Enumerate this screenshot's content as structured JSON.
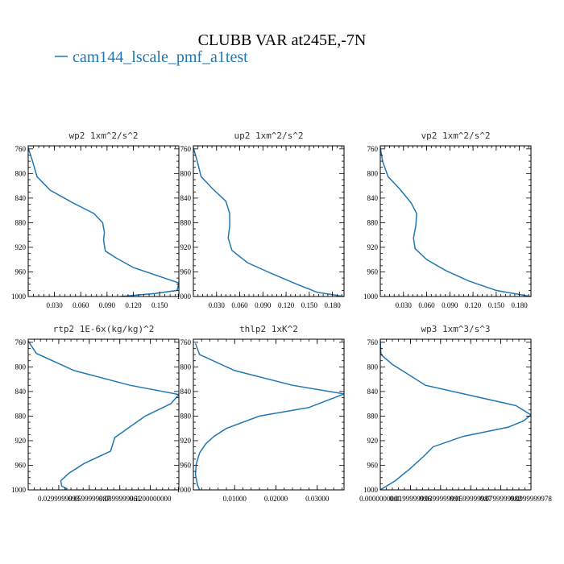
{
  "figure": {
    "title": "CLUBB VAR at245E,-7N",
    "legend": [
      {
        "label": "cam144_lscale_pmf_a1test",
        "color": "#1f77b4"
      }
    ]
  },
  "colors": {
    "series": "#1f77b4",
    "axes": "#000000"
  },
  "chart_data": [
    {
      "type": "line",
      "title": "wp2  1xm^2/s^2",
      "xlim": [
        0,
        0.172
      ],
      "ylim": [
        1000,
        755
      ],
      "xticks": [
        0.03,
        0.06,
        0.09,
        0.12,
        0.15
      ],
      "xtick_labels": [
        "0.030",
        "0.060",
        "0.090",
        "0.120",
        "0.150"
      ],
      "yticks": [
        760,
        800,
        840,
        880,
        920,
        960,
        1000
      ],
      "ytick_labels": [
        "760",
        "800",
        "840",
        "880",
        "920",
        "960",
        "1000"
      ],
      "series": [
        {
          "x": [
            0.0,
            0.005,
            0.01,
            0.025,
            0.05,
            0.075,
            0.085,
            0.087,
            0.086,
            0.088,
            0.1,
            0.12,
            0.172,
            0.17,
            0.145,
            0.105
          ],
          "y": [
            758,
            780,
            805,
            827,
            847,
            865,
            880,
            896,
            908,
            926,
            937,
            953,
            978,
            990,
            995,
            1000
          ]
        }
      ]
    },
    {
      "type": "line",
      "title": "up2  1xm^2/s^2",
      "xlim": [
        0,
        0.195
      ],
      "ylim": [
        1000,
        755
      ],
      "xticks": [
        0.03,
        0.06,
        0.09,
        0.12,
        0.15,
        0.18
      ],
      "xtick_labels": [
        "0.030",
        "0.060",
        "0.090",
        "0.120",
        "0.150",
        "0.180"
      ],
      "yticks": [
        760,
        800,
        840,
        880,
        920,
        960,
        1000
      ],
      "ytick_labels": [
        "760",
        "800",
        "840",
        "880",
        "920",
        "960",
        "1000"
      ],
      "series": [
        {
          "x": [
            0.0,
            0.005,
            0.01,
            0.025,
            0.042,
            0.047,
            0.047,
            0.045,
            0.05,
            0.07,
            0.1,
            0.13,
            0.16,
            0.195
          ],
          "y": [
            758,
            780,
            805,
            825,
            845,
            865,
            885,
            905,
            925,
            945,
            962,
            978,
            993,
            1000
          ]
        }
      ]
    },
    {
      "type": "line",
      "title": "vp2  1xm^2/s^2",
      "xlim": [
        0,
        0.195
      ],
      "ylim": [
        1000,
        755
      ],
      "xticks": [
        0.03,
        0.06,
        0.09,
        0.12,
        0.15,
        0.18
      ],
      "xtick_labels": [
        "0.030",
        "0.060",
        "0.090",
        "0.120",
        "0.150",
        "0.180"
      ],
      "yticks": [
        760,
        800,
        840,
        880,
        920,
        960,
        1000
      ],
      "ytick_labels": [
        "760",
        "800",
        "840",
        "880",
        "920",
        "960",
        "1000"
      ],
      "series": [
        {
          "x": [
            0.0,
            0.003,
            0.01,
            0.025,
            0.04,
            0.047,
            0.046,
            0.043,
            0.045,
            0.06,
            0.085,
            0.115,
            0.15,
            0.195
          ],
          "y": [
            758,
            780,
            805,
            825,
            848,
            865,
            885,
            905,
            922,
            940,
            958,
            975,
            990,
            1000
          ]
        }
      ]
    },
    {
      "type": "line",
      "title": "rtp2  1E-6x(kg/kg)^2",
      "xlim": [
        0,
        0.148
      ],
      "ylim": [
        1000,
        755
      ],
      "xticks": [
        0.03,
        0.06,
        0.09,
        0.12
      ],
      "xtick_labels": [
        "0.0299999993",
        "0.0599999987",
        "0.0899999961",
        "0.1200000000"
      ],
      "yticks": [
        760,
        800,
        840,
        880,
        920,
        960,
        1000
      ],
      "ytick_labels": [
        "760",
        "800",
        "840",
        "880",
        "920",
        "960",
        "1000"
      ],
      "series": [
        {
          "x": [
            0.0,
            0.008,
            0.045,
            0.1,
            0.148,
            0.14,
            0.115,
            0.085,
            0.081,
            0.055,
            0.04,
            0.032,
            0.033,
            0.038,
            0.034
          ],
          "y": [
            758,
            778,
            806,
            830,
            845,
            860,
            880,
            915,
            937,
            957,
            973,
            985,
            994,
            998,
            1003
          ]
        }
      ]
    },
    {
      "type": "line",
      "title": "thlp2  1xK^2",
      "xlim": [
        0,
        0.0365
      ],
      "ylim": [
        1000,
        755
      ],
      "xticks": [
        0.01,
        0.02,
        0.03
      ],
      "xtick_labels": [
        "0.01000",
        "0.02000",
        "0.03000"
      ],
      "yticks": [
        760,
        800,
        840,
        880,
        920,
        960,
        1000
      ],
      "ytick_labels": [
        "760",
        "800",
        "840",
        "880",
        "920",
        "960",
        "1000"
      ],
      "series": [
        {
          "x": [
            0.0005,
            0.0015,
            0.01,
            0.024,
            0.0365,
            0.028,
            0.016,
            0.008,
            0.005,
            0.003,
            0.0015,
            0.0007,
            0.0005,
            0.001,
            0.0015
          ],
          "y": [
            762,
            780,
            806,
            830,
            844,
            866,
            880,
            900,
            913,
            925,
            940,
            958,
            975,
            992,
            1000
          ]
        }
      ]
    },
    {
      "type": "line",
      "title": "wp3  1xm^3/s^3",
      "xlim": [
        0,
        0.1
      ],
      "ylim": [
        1000,
        755
      ],
      "xticks": [
        0.0,
        0.02,
        0.04,
        0.06,
        0.08,
        0.1
      ],
      "xtick_labels": [
        "0.0000000000",
        "0.0199999996",
        "0.0399999991",
        "0.0599999987",
        "0.0799999982",
        "0.0999999978"
      ],
      "yticks": [
        760,
        800,
        840,
        880,
        920,
        960,
        1000
      ],
      "ytick_labels": [
        "760",
        "800",
        "840",
        "880",
        "920",
        "960",
        "1000"
      ],
      "series": [
        {
          "x": [
            0.0,
            0.0005,
            0.008,
            0.03,
            0.09,
            0.1,
            0.095,
            0.085,
            0.055,
            0.035,
            0.029,
            0.02,
            0.01,
            0.0
          ],
          "y": [
            758,
            780,
            796,
            830,
            863,
            878,
            888,
            898,
            913,
            930,
            945,
            965,
            985,
            1000
          ]
        }
      ]
    }
  ]
}
